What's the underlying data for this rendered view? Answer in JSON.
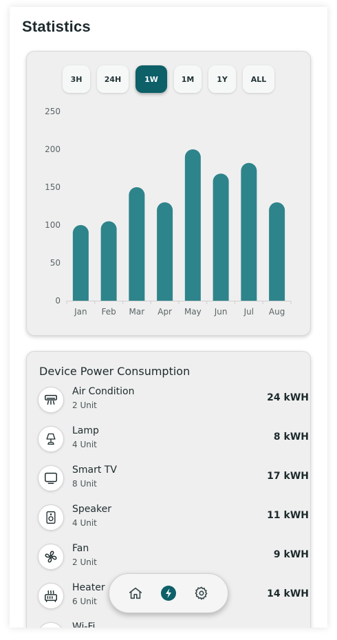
{
  "page": {
    "title": "Statistics"
  },
  "range_tabs": [
    {
      "label": "3H",
      "active": false
    },
    {
      "label": "24H",
      "active": false
    },
    {
      "label": "1W",
      "active": true
    },
    {
      "label": "1M",
      "active": false
    },
    {
      "label": "1Y",
      "active": false
    },
    {
      "label": "ALL",
      "active": false
    }
  ],
  "chart_data": {
    "type": "bar",
    "title": "",
    "xlabel": "",
    "ylabel": "",
    "categories": [
      "Jan",
      "Feb",
      "Mar",
      "Apr",
      "May",
      "Jun",
      "Jul",
      "Aug"
    ],
    "values": [
      100,
      105,
      150,
      130,
      200,
      168,
      182,
      130
    ],
    "ylim": [
      0,
      250
    ],
    "yticks": [
      0,
      50,
      100,
      150,
      200,
      250
    ],
    "bar_color": "#2e848b",
    "grid": false
  },
  "devices": {
    "title": "Device Power Consumption",
    "items": [
      {
        "name": "Air Condition",
        "units": "2 Unit",
        "power": "24 kWH",
        "icon": "air-conditioner-icon"
      },
      {
        "name": "Lamp",
        "units": "4 Unit",
        "power": "8 kWH",
        "icon": "lamp-icon"
      },
      {
        "name": "Smart TV",
        "units": "8 Unit",
        "power": "17 kWH",
        "icon": "tv-icon"
      },
      {
        "name": "Speaker",
        "units": "4 Unit",
        "power": "11 kWH",
        "icon": "speaker-icon"
      },
      {
        "name": "Fan",
        "units": "2 Unit",
        "power": "9 kWH",
        "icon": "fan-icon"
      },
      {
        "name": "Heater",
        "units": "6 Unit",
        "power": "14 kWH",
        "icon": "heater-icon"
      },
      {
        "name": "Wi-Fi",
        "units": "",
        "power": "",
        "icon": "wifi-icon"
      }
    ]
  },
  "nav": {
    "items": [
      {
        "icon": "home-icon",
        "active": false
      },
      {
        "icon": "lightning-icon",
        "active": true
      },
      {
        "icon": "gear-icon",
        "active": false
      }
    ]
  },
  "colors": {
    "accent": "#0d5f68",
    "bar": "#2e848b"
  }
}
